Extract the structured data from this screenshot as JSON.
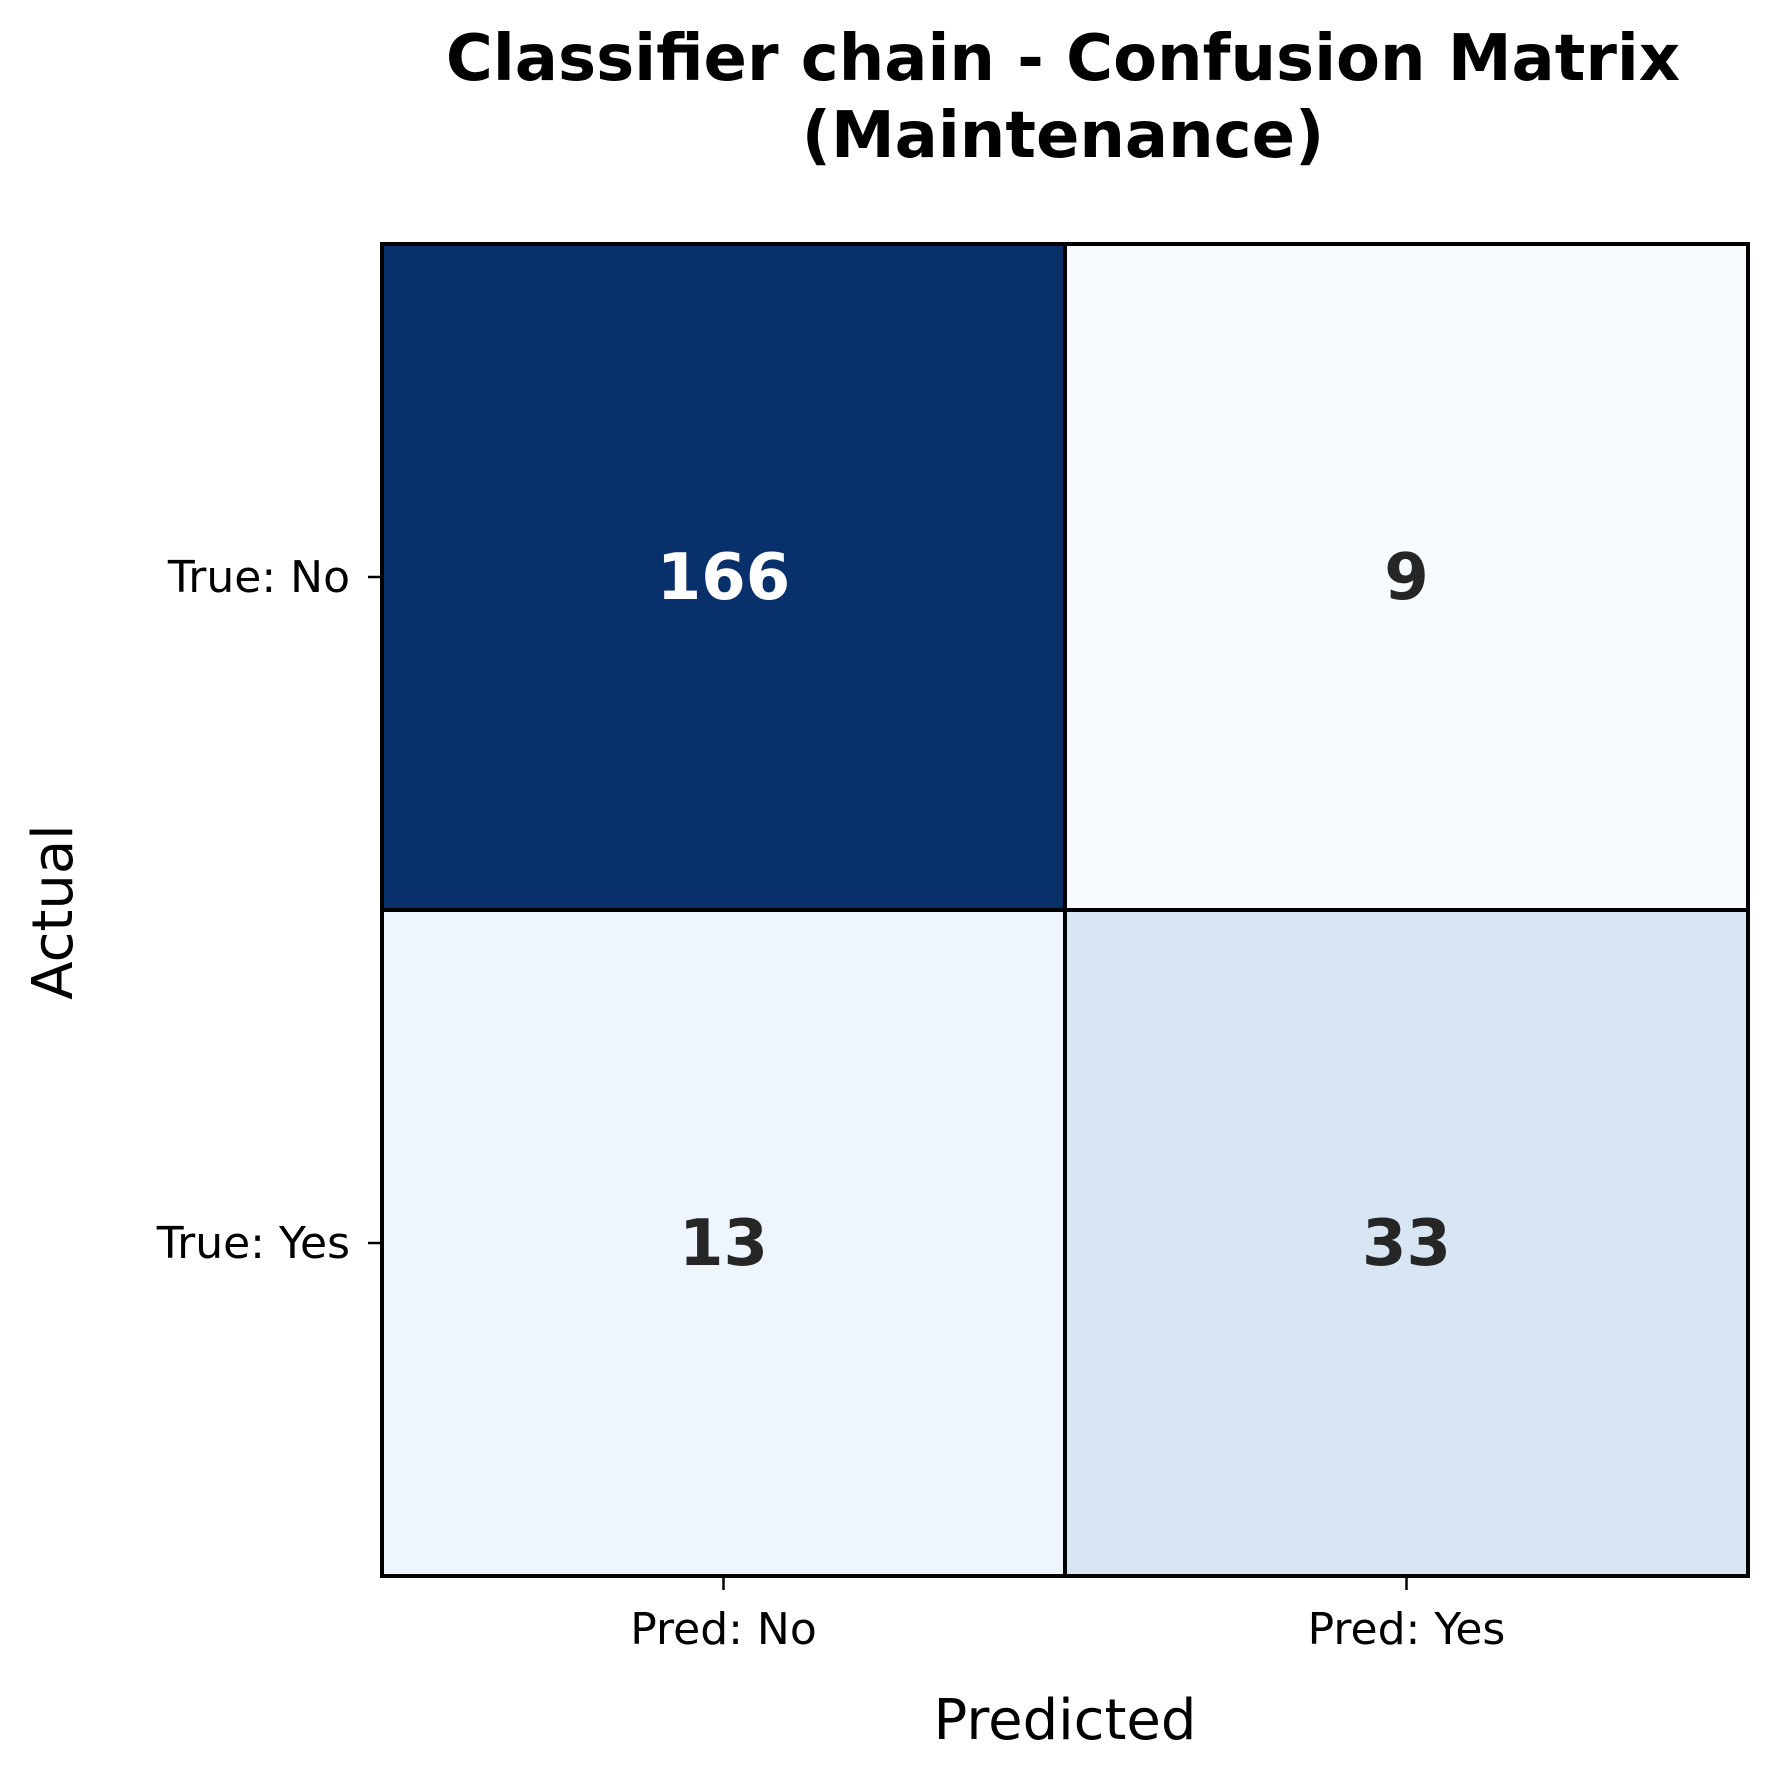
{
  "chart_data": {
    "type": "heatmap",
    "title_lines": [
      "Classifier chain - Confusion Matrix",
      "(Maintenance)"
    ],
    "xlabel": "Predicted",
    "ylabel": "Actual",
    "x_categories": [
      "Pred: No",
      "Pred: Yes"
    ],
    "y_categories": [
      "True: No",
      "True: Yes"
    ],
    "values": [
      [
        166,
        9
      ],
      [
        13,
        33
      ]
    ],
    "colormap": "Blues",
    "cell_colors": [
      [
        "#08306b",
        "#f7fbff"
      ],
      [
        "#eff5fd",
        "#d8e6f4"
      ]
    ],
    "annotation_colors": [
      [
        "#ffffff",
        "#262626"
      ],
      [
        "#262626",
        "#262626"
      ]
    ],
    "cell_border_color": "#000000",
    "grid": false,
    "legend": "none"
  }
}
